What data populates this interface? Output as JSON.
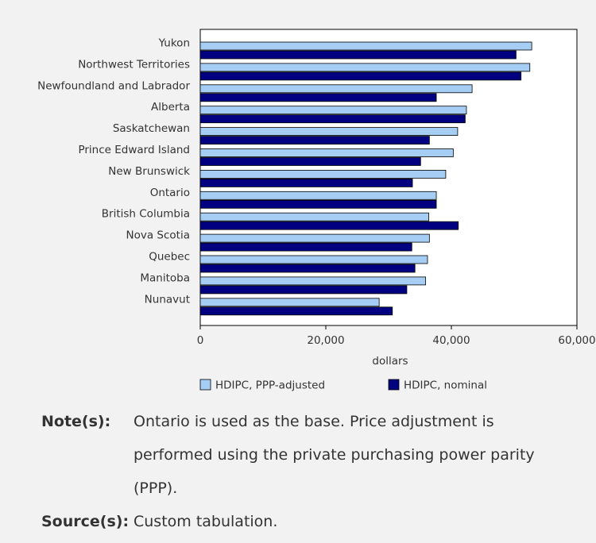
{
  "chart_data": {
    "type": "bar",
    "orientation": "horizontal",
    "categories": [
      "Yukon",
      "Northwest Territories",
      "Newfoundland and Labrador",
      "Alberta",
      "Saskatchewan",
      "Prince Edward Island",
      "New Brunswick",
      "Ontario",
      "British Columbia",
      "Nova Scotia",
      "Quebec",
      "Manitoba",
      "Nunavut"
    ],
    "series": [
      {
        "name": "HDIPC, PPP-adjusted",
        "color": "#a6cef5",
        "values": [
          52800,
          52500,
          43300,
          42400,
          41000,
          40300,
          39100,
          37600,
          36400,
          36500,
          36200,
          35900,
          28500
        ]
      },
      {
        "name": "HDIPC, nominal",
        "color": "#000080",
        "values": [
          50300,
          51100,
          37600,
          42200,
          36500,
          35100,
          33800,
          37600,
          41100,
          33700,
          34200,
          32900,
          30600
        ]
      }
    ],
    "xlabel": "dollars",
    "ylabel": "",
    "xlim": [
      0,
      60000
    ],
    "xticks": [
      0,
      20000,
      40000,
      60000
    ],
    "xtick_labels": [
      "0",
      "20,000",
      "40,000",
      "60,000"
    ],
    "grid": false,
    "legend_position": "bottom"
  },
  "notes": {
    "note_label": "Note(s):",
    "note_text": "Ontario is used as the base. Price adjustment is performed using the private purchasing power parity (PPP).",
    "source_label": "Source(s):",
    "source_text": "Custom tabulation."
  },
  "colors": {
    "background": "#f2f2f2",
    "plot_background": "#ffffff",
    "ppp_bar": "#a6cef5",
    "nominal_bar": "#000080"
  }
}
